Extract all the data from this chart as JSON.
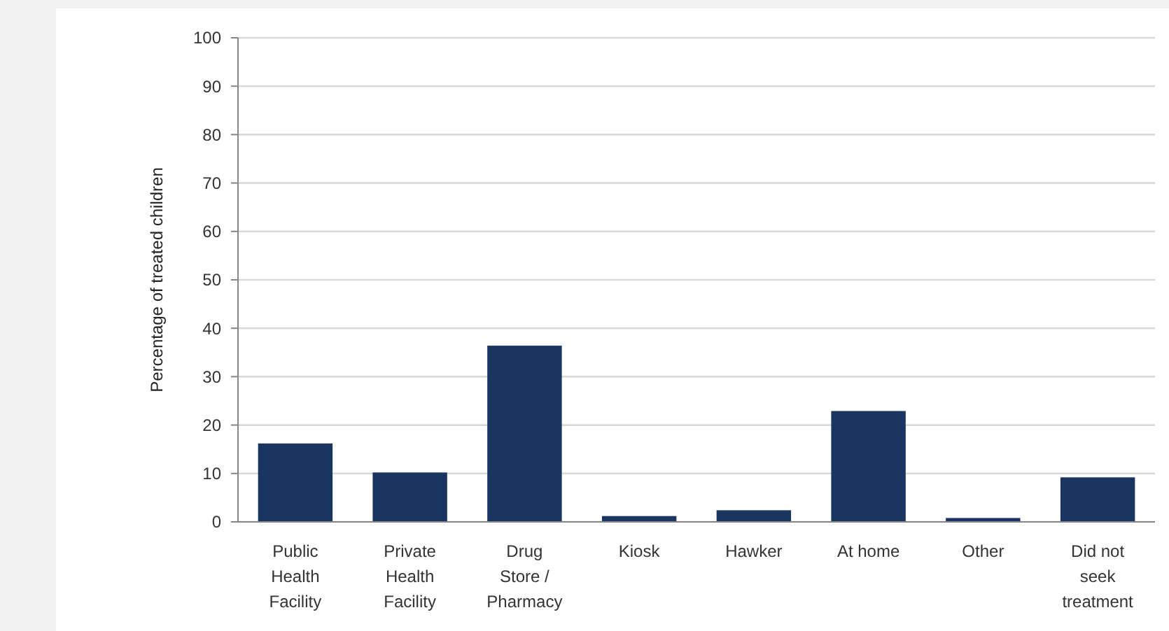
{
  "chart_data": {
    "type": "bar",
    "ylabel": "Percentage of treated children",
    "categories": [
      "Public Health Facility",
      "Private Health Facility",
      "Drug Store / Pharmacy",
      "Kiosk",
      "Hawker",
      "At home",
      "Other",
      "Did not seek treatment"
    ],
    "values": [
      16.2,
      10.2,
      36.4,
      1.2,
      2.4,
      22.9,
      0.8,
      9.2
    ],
    "color": "#1a3660",
    "ylim": [
      0,
      100
    ],
    "yticks": [
      0,
      10,
      20,
      30,
      40,
      50,
      60,
      70,
      80,
      90,
      100
    ],
    "grid": "y"
  }
}
